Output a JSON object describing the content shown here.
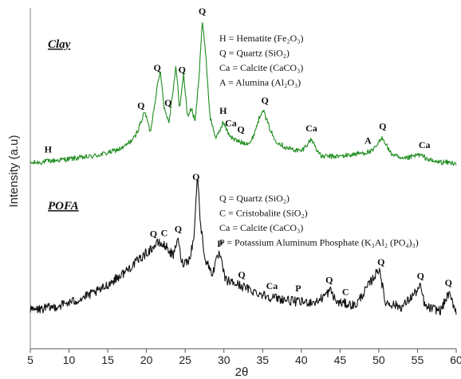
{
  "chart_data": {
    "type": "line",
    "xlabel": "2θ",
    "ylabel": "Intensity (a.u)",
    "xlim": [
      5,
      60
    ],
    "xticks": [
      "5",
      "10",
      "15",
      "20",
      "25",
      "30",
      "35",
      "40",
      "45",
      "50",
      "55",
      "60"
    ],
    "colors": {
      "Clay": "#1e8c1e",
      "POFA": "#111111"
    },
    "series": [
      {
        "name": "Clay",
        "title": "Clay",
        "baseline": 0.18,
        "points": [
          [
            5,
            0.18
          ],
          [
            7,
            0.19
          ],
          [
            9,
            0.2
          ],
          [
            11,
            0.21
          ],
          [
            13,
            0.22
          ],
          [
            15,
            0.24
          ],
          [
            17,
            0.27
          ],
          [
            18.5,
            0.33
          ],
          [
            19.8,
            0.48
          ],
          [
            20.5,
            0.36
          ],
          [
            21.3,
            0.6
          ],
          [
            21.8,
            0.72
          ],
          [
            22.3,
            0.5
          ],
          [
            22.9,
            0.42
          ],
          [
            23.8,
            0.74
          ],
          [
            24.3,
            0.5
          ],
          [
            24.8,
            0.7
          ],
          [
            25.3,
            0.45
          ],
          [
            25.8,
            0.5
          ],
          [
            26.3,
            0.42
          ],
          [
            26.8,
            0.7
          ],
          [
            27.2,
            1.0
          ],
          [
            27.6,
            0.85
          ],
          [
            28.2,
            0.45
          ],
          [
            29,
            0.32
          ],
          [
            29.9,
            0.42
          ],
          [
            30.5,
            0.36
          ],
          [
            31.2,
            0.32
          ],
          [
            32.3,
            0.3
          ],
          [
            33.5,
            0.3
          ],
          [
            35,
            0.5
          ],
          [
            35.6,
            0.42
          ],
          [
            36.5,
            0.32
          ],
          [
            38,
            0.27
          ],
          [
            40,
            0.25
          ],
          [
            41.3,
            0.32
          ],
          [
            42.5,
            0.22
          ],
          [
            45,
            0.22
          ],
          [
            48,
            0.24
          ],
          [
            49.2,
            0.25
          ],
          [
            50.5,
            0.33
          ],
          [
            51.5,
            0.24
          ],
          [
            53,
            0.2
          ],
          [
            55.2,
            0.23
          ],
          [
            57,
            0.19
          ],
          [
            60,
            0.18
          ]
        ]
      },
      {
        "name": "POFA",
        "title": "POFA",
        "baseline": 0.2,
        "points": [
          [
            5,
            0.2
          ],
          [
            8,
            0.22
          ],
          [
            11,
            0.26
          ],
          [
            14,
            0.32
          ],
          [
            17,
            0.42
          ],
          [
            19,
            0.5
          ],
          [
            20.5,
            0.56
          ],
          [
            21.5,
            0.6
          ],
          [
            22.5,
            0.58
          ],
          [
            23.5,
            0.52
          ],
          [
            24,
            0.63
          ],
          [
            24.6,
            0.48
          ],
          [
            25.5,
            0.5
          ],
          [
            26.1,
            0.62
          ],
          [
            26.6,
            1.0
          ],
          [
            27,
            0.7
          ],
          [
            27.6,
            0.5
          ],
          [
            28.5,
            0.42
          ],
          [
            29.4,
            0.54
          ],
          [
            30.2,
            0.38
          ],
          [
            32,
            0.35
          ],
          [
            34,
            0.31
          ],
          [
            36,
            0.28
          ],
          [
            39.6,
            0.25
          ],
          [
            42,
            0.25
          ],
          [
            43.8,
            0.32
          ],
          [
            44.5,
            0.25
          ],
          [
            47,
            0.23
          ],
          [
            50.1,
            0.45
          ],
          [
            50.8,
            0.25
          ],
          [
            53,
            0.22
          ],
          [
            55.4,
            0.34
          ],
          [
            56,
            0.22
          ],
          [
            58,
            0.2
          ],
          [
            59,
            0.3
          ],
          [
            60,
            0.2
          ]
        ]
      }
    ],
    "peak_labels": [
      {
        "series": "Clay",
        "text": "H",
        "x": 7.3
      },
      {
        "series": "Clay",
        "text": "Q",
        "x": 19.3
      },
      {
        "series": "Clay",
        "text": "Q",
        "x": 21.4
      },
      {
        "series": "Clay",
        "text": "Q",
        "x": 22.8
      },
      {
        "series": "Clay",
        "text": "Q",
        "x": 24.6
      },
      {
        "series": "Clay",
        "text": "Q",
        "x": 27.2
      },
      {
        "series": "Clay",
        "text": "H",
        "x": 29.9
      },
      {
        "series": "Clay",
        "text": "Ca",
        "x": 30.9
      },
      {
        "series": "Clay",
        "text": "Q",
        "x": 32.2
      },
      {
        "series": "Clay",
        "text": "Q",
        "x": 35.3
      },
      {
        "series": "Clay",
        "text": "Ca",
        "x": 41.3
      },
      {
        "series": "Clay",
        "text": "A",
        "x": 48.6
      },
      {
        "series": "Clay",
        "text": "Q",
        "x": 50.5
      },
      {
        "series": "Clay",
        "text": "Ca",
        "x": 55.9
      },
      {
        "series": "POFA",
        "text": "Q",
        "x": 20.9
      },
      {
        "series": "POFA",
        "text": "C",
        "x": 22.3
      },
      {
        "series": "POFA",
        "text": "Q",
        "x": 24.1
      },
      {
        "series": "POFA",
        "text": "Q",
        "x": 26.4
      },
      {
        "series": "POFA",
        "text": "P",
        "x": 29.5
      },
      {
        "series": "POFA",
        "text": "Q",
        "x": 32.3
      },
      {
        "series": "POFA",
        "text": "Ca",
        "x": 36.2
      },
      {
        "series": "POFA",
        "text": "P",
        "x": 39.6
      },
      {
        "series": "POFA",
        "text": "Q",
        "x": 43.6
      },
      {
        "series": "POFA",
        "text": "C",
        "x": 45.7
      },
      {
        "series": "POFA",
        "text": "Q",
        "x": 50.3
      },
      {
        "series": "POFA",
        "text": "Q",
        "x": 55.4
      },
      {
        "series": "POFA",
        "text": "Q",
        "x": 59
      }
    ],
    "legends": {
      "Clay": [
        "H   = Hematite (Fe₂O₃)",
        "Q   = Quartz (SiO₂)",
        "Ca = Calcite (CaCO₃)",
        "A   = Alumina (Al₂O₃)"
      ],
      "POFA": [
        "Q   = Quartz (SiO₂)",
        "C   = Cristobalite (SiO₂)",
        "Ca = Calcite (CaCO₃)",
        "P   = Potassium Aluminum Phosphate (K₃Al₂ (PO₄)₃)"
      ]
    }
  }
}
